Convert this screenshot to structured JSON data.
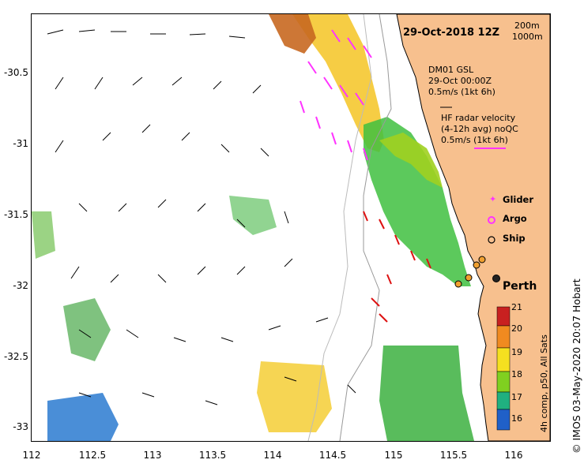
{
  "map": {
    "date_label": "29-Oct-2018 12Z",
    "depth_contours": [
      "200m",
      "1000m"
    ],
    "dm01": {
      "line1": "DM01 GSL",
      "line2": "29-Oct 00:00Z",
      "line3": "0.5m/s (1kt 6h)"
    },
    "hf_radar": {
      "line1": "HF radar velocity",
      "line2": "(4-12h avg) noQC",
      "line3": "0.5m/s (1kt 6h)"
    },
    "legend": {
      "glider": "Glider",
      "argo": "Argo",
      "ship": "Ship"
    },
    "city": "Perth",
    "x_ticks": [
      "112",
      "112.5",
      "113",
      "113.5",
      "114",
      "114.5",
      "115",
      "115.5",
      "116"
    ],
    "y_ticks": [
      "-30.5",
      "-31",
      "-31.5",
      "-32",
      "-32.5",
      "-33"
    ],
    "colorbar": {
      "ticks": [
        "21",
        "20",
        "19",
        "18",
        "17",
        "16"
      ],
      "label": "4h comp, p50, All Sats"
    },
    "credit": "© IMOS 03-May-2020 20:07 Hobart",
    "colors": {
      "land": "#f7c08e",
      "current_arrow": "#000000",
      "hf_arrow": "#ff33ff",
      "glider_arrow": "#dd1111",
      "ship_marker": "#f0a030"
    }
  }
}
